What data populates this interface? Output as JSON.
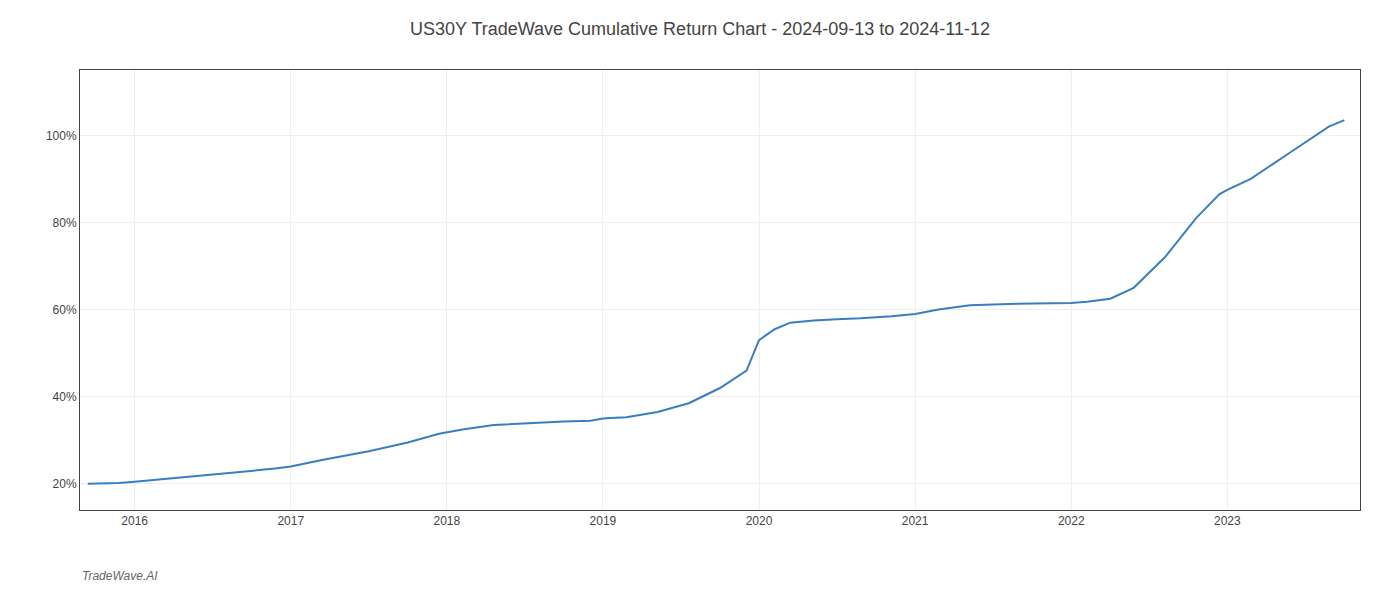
{
  "chart_data": {
    "type": "line",
    "title": "US30Y TradeWave Cumulative Return Chart - 2024-09-13 to 2024-11-12",
    "annotations": [
      "TradeWave.AI"
    ],
    "color": "#3a7ebf",
    "grid": true,
    "x": [
      2015.7,
      2015.9,
      2016.0,
      2016.15,
      2016.4,
      2016.6,
      2016.9,
      2017.0,
      2017.2,
      2017.5,
      2017.75,
      2017.95,
      2018.1,
      2018.3,
      2018.55,
      2018.75,
      2018.92,
      2019.0,
      2019.05,
      2019.15,
      2019.35,
      2019.55,
      2019.75,
      2019.92,
      2020.0,
      2020.1,
      2020.2,
      2020.35,
      2020.5,
      2020.65,
      2020.85,
      2021.0,
      2021.15,
      2021.35,
      2021.6,
      2021.85,
      2022.0,
      2022.1,
      2022.25,
      2022.4,
      2022.6,
      2022.8,
      2022.95,
      2023.0,
      2023.15,
      2023.4,
      2023.65,
      2023.75
    ],
    "values": [
      20.0,
      20.2,
      20.5,
      21.0,
      21.8,
      22.5,
      23.5,
      24.0,
      25.5,
      27.5,
      29.5,
      31.5,
      32.5,
      33.5,
      34.0,
      34.3,
      34.5,
      35.0,
      35.1,
      35.3,
      36.5,
      38.5,
      42.0,
      46.0,
      53.0,
      55.5,
      57.0,
      57.5,
      57.8,
      58.0,
      58.5,
      59.0,
      60.0,
      61.0,
      61.3,
      61.5,
      61.5,
      61.8,
      62.5,
      65.0,
      72.0,
      81.0,
      86.5,
      87.5,
      90.0,
      96.0,
      102.0,
      103.5
    ],
    "xlim": [
      2015.65,
      2023.85
    ],
    "xticks": [
      2016,
      2017,
      2018,
      2019,
      2020,
      2021,
      2022,
      2023
    ],
    "ylim": [
      14,
      115
    ],
    "yticks": [
      {
        "value": 20,
        "label": "20%"
      },
      {
        "value": 40,
        "label": "40%"
      },
      {
        "value": 60,
        "label": "60%"
      },
      {
        "value": 80,
        "label": "80%"
      },
      {
        "value": 100,
        "label": "100%"
      }
    ]
  }
}
